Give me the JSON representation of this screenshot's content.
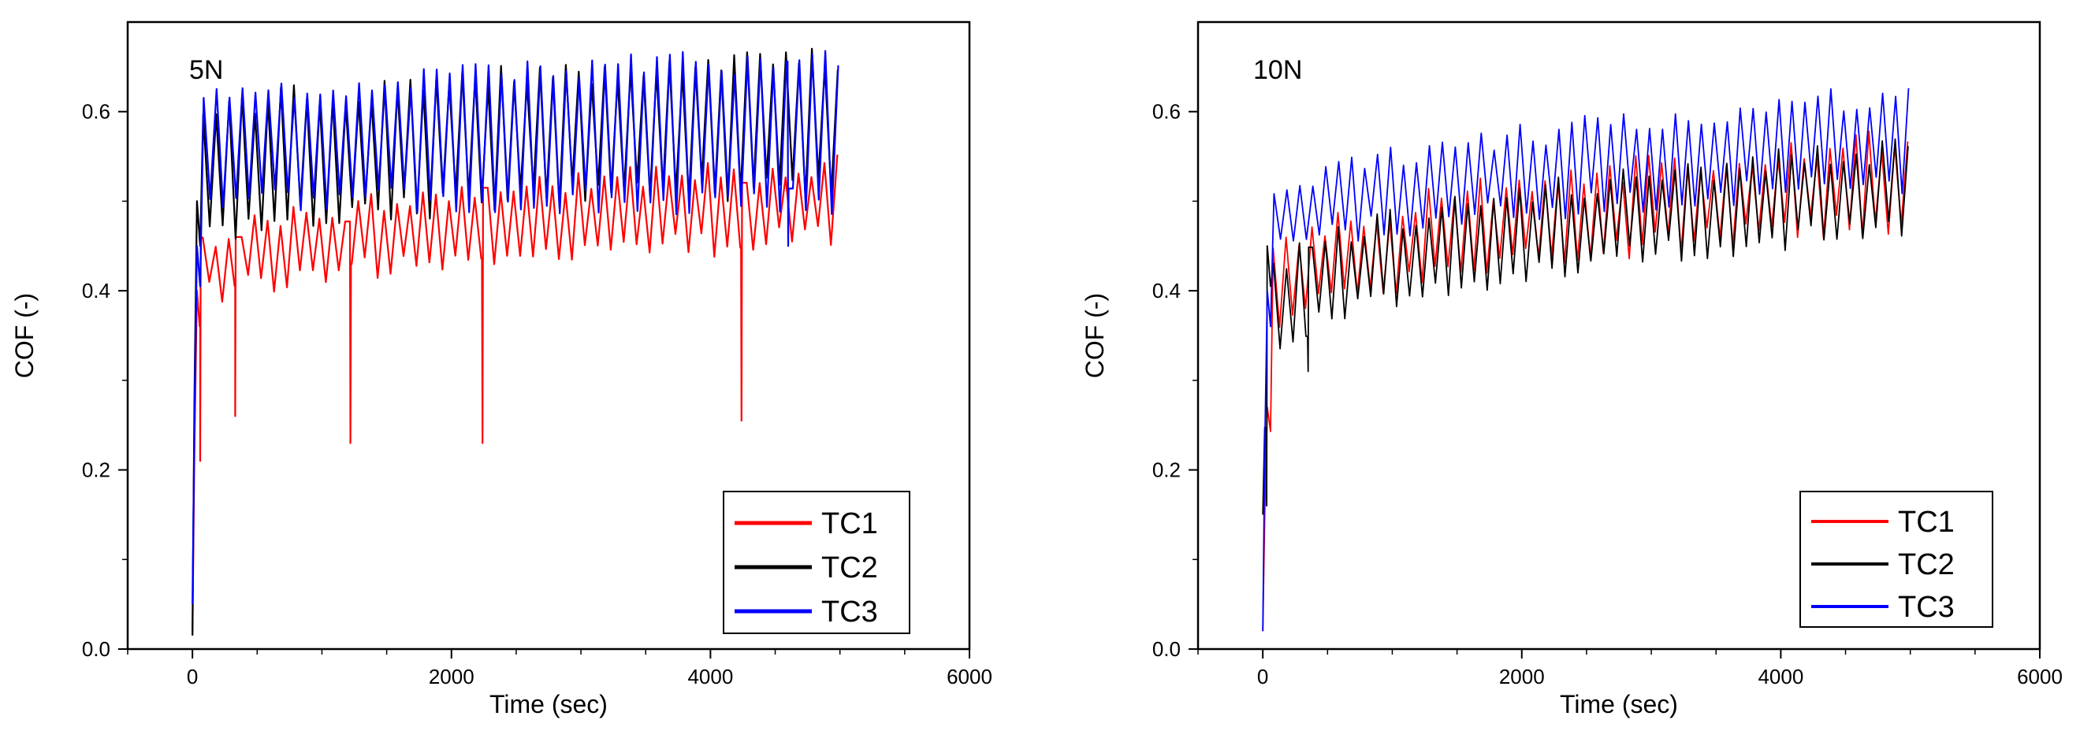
{
  "chart_data": [
    {
      "type": "line",
      "title": "5N",
      "xlabel": "Time (sec)",
      "ylabel": "COF (-)",
      "xlim": [
        -500,
        6000
      ],
      "ylim": [
        0.0,
        0.7
      ],
      "xticks": [
        0,
        2000,
        4000,
        6000
      ],
      "xtick_labels": [
        "0",
        "2000",
        "4000",
        "6000"
      ],
      "yticks": [
        0.0,
        0.2,
        0.4,
        0.6
      ],
      "ytick_labels": [
        "0.0",
        "0.2",
        "0.4",
        "0.6"
      ],
      "legend_position": "bottom-right",
      "series": [
        {
          "name": "TC1",
          "color": "#ff0000",
          "start": 0.02,
          "rise_to": 0.4,
          "low": 0.38,
          "low_end": 0.46,
          "high": 0.44,
          "high_end": 0.54,
          "period": 100,
          "spikes": [
            [
              60,
              0.21
            ],
            [
              330,
              0.26
            ],
            [
              1220,
              0.23
            ],
            [
              2240,
              0.23
            ],
            [
              4240,
              0.255
            ]
          ]
        },
        {
          "name": "TC2",
          "color": "#000000",
          "start": 0.015,
          "rise_to": 0.5,
          "low": 0.45,
          "low_end": 0.52,
          "high": 0.58,
          "high_end": 0.66,
          "period": 100,
          "spikes": []
        },
        {
          "name": "TC3",
          "color": "#0000ff",
          "start": 0.05,
          "rise_to": 0.45,
          "low": 0.5,
          "low_end": 0.5,
          "high": 0.6,
          "high_end": 0.66,
          "period": 100,
          "spikes": [
            [
              4600,
              0.45
            ]
          ]
        }
      ]
    },
    {
      "type": "line",
      "title": "10N",
      "xlabel": "Time (sec)",
      "ylabel": "COF (-)",
      "xlim": [
        -500,
        6000
      ],
      "ylim": [
        0.0,
        0.7
      ],
      "xticks": [
        0,
        2000,
        4000,
        6000
      ],
      "xtick_labels": [
        "0",
        "2000",
        "4000",
        "6000"
      ],
      "yticks": [
        0.0,
        0.2,
        0.4,
        0.6
      ],
      "ytick_labels": [
        "0.0",
        "0.2",
        "0.4",
        "0.6"
      ],
      "legend_position": "bottom-right",
      "series": [
        {
          "name": "TC1",
          "color": "#ff0000",
          "start": 0.02,
          "rise_to": 0.27,
          "low": 0.34,
          "low_end": 0.48,
          "high": 0.42,
          "high_end": 0.57,
          "period": 100,
          "spikes": []
        },
        {
          "name": "TC2",
          "color": "#000000",
          "start": 0.15,
          "rise_to": 0.45,
          "low": 0.32,
          "low_end": 0.47,
          "high": 0.4,
          "high_end": 0.56,
          "period": 100,
          "spikes": [
            [
              30,
              0.16
            ],
            [
              350,
              0.31
            ]
          ]
        },
        {
          "name": "TC3",
          "color": "#0000ff",
          "start": 0.02,
          "rise_to": 0.4,
          "low": 0.43,
          "low_end": 0.52,
          "high": 0.48,
          "high_end": 0.62,
          "period": 100,
          "spikes": []
        }
      ]
    }
  ]
}
